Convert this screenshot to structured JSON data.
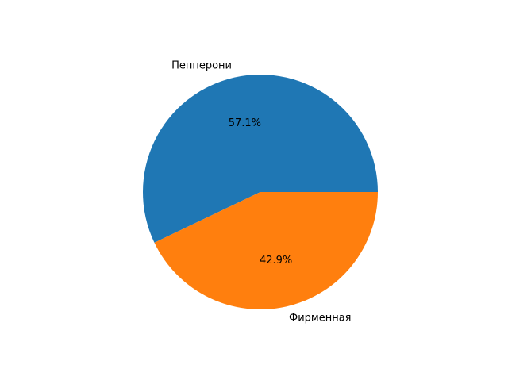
{
  "chart_data": {
    "type": "pie",
    "categories": [
      "Пепперони",
      "Фирменная"
    ],
    "values": [
      57.1,
      42.9
    ],
    "percent_labels": [
      "57.1%",
      "42.9%"
    ],
    "colors": [
      "#1f77b4",
      "#ff7f0e"
    ],
    "start_angle_deg": 0,
    "direction": "counterclockwise",
    "legend": "none"
  }
}
